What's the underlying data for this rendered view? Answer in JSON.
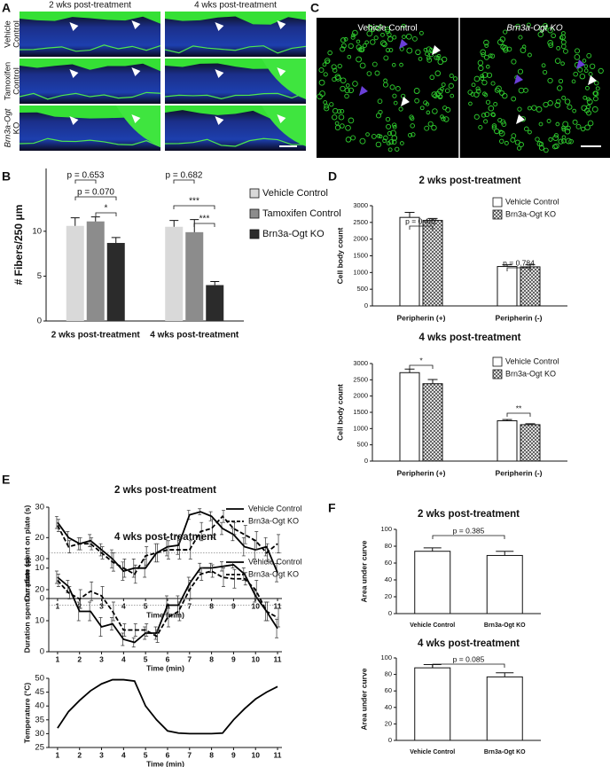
{
  "panel_letters": [
    "A",
    "B",
    "C",
    "D",
    "E",
    "F"
  ],
  "micrographs_a": {
    "columns": [
      "2 wks post-treatment",
      "4 wks post-treatment"
    ],
    "rows": [
      [
        "Vehicle",
        "Control"
      ],
      [
        "Tamoxifen",
        "Control"
      ],
      [
        "Brn3a-Ogt",
        "KO"
      ]
    ]
  },
  "micrographs_c": {
    "columns": [
      "Vehicle Control",
      "Brn3a-Ogt KO"
    ]
  },
  "chart_data": [
    {
      "type": "bar",
      "ylabel": "# Fibers/250 μm",
      "categories": [
        "2 wks post-treatment",
        "4 wks post-treatment"
      ],
      "series": [
        {
          "name": "Vehicle Control",
          "color": "#d9d9d9",
          "values": [
            10.6,
            10.5
          ],
          "errors": [
            0.9,
            0.7
          ]
        },
        {
          "name": "Tamoxifen Control",
          "color": "#8c8c8c",
          "values": [
            11.1,
            9.9
          ],
          "errors": [
            0.5,
            1.4
          ]
        },
        {
          "name": "Brn3a-Ogt KO",
          "color": "#2b2b2b",
          "values": [
            8.7,
            4.0
          ],
          "errors": [
            0.6,
            0.4
          ]
        }
      ],
      "ylim": [
        0,
        17
      ],
      "yticks": [
        0,
        5,
        10
      ],
      "legend": "right",
      "annotations": [
        "p = 0.653",
        "p = 0.070",
        "*",
        "p = 0.682",
        "***",
        "***"
      ]
    },
    {
      "type": "bar",
      "title": "2 wks post-treatment",
      "ylabel": "Cell body count",
      "categories": [
        "Peripherin (+)",
        "Peripherin (-)"
      ],
      "series": [
        {
          "name": "Vehicle Control",
          "color": "#ffffff",
          "values": [
            2650,
            1180
          ],
          "errors": [
            150,
            50
          ]
        },
        {
          "name": "Brn3a-Ogt KO",
          "color": "#444444",
          "hatch": true,
          "values": [
            2560,
            1170
          ],
          "errors": [
            60,
            60
          ]
        }
      ],
      "ylim": [
        0,
        3000
      ],
      "yticks": [
        0,
        500,
        1000,
        1500,
        2000,
        2500,
        3000
      ],
      "legend": "upper right",
      "annotations": [
        "p = 0.402",
        "p = 0.784"
      ]
    },
    {
      "type": "bar",
      "title": "4 wks post-treatment",
      "ylabel": "Cell body count",
      "categories": [
        "Peripherin (+)",
        "Peripherin (-)"
      ],
      "series": [
        {
          "name": "Vehicle Control",
          "color": "#ffffff",
          "values": [
            2720,
            1240
          ],
          "errors": [
            110,
            40
          ]
        },
        {
          "name": "Brn3a-Ogt KO",
          "color": "#444444",
          "hatch": true,
          "values": [
            2380,
            1120
          ],
          "errors": [
            130,
            30
          ]
        }
      ],
      "ylim": [
        0,
        3000
      ],
      "yticks": [
        0,
        500,
        1000,
        1500,
        2000,
        2500,
        3000
      ],
      "legend": "upper right",
      "annotations": [
        "*",
        "**"
      ]
    },
    {
      "type": "line",
      "title": "2 wks post-treatment",
      "xlabel": "Time (min)",
      "ylabel": "Duration spent on plate (s)",
      "x": [
        1,
        1.5,
        2,
        2.5,
        3,
        3.5,
        4,
        4.5,
        5,
        5.5,
        6,
        6.5,
        7,
        7.5,
        8,
        8.5,
        9,
        9.5,
        10,
        10.5,
        11
      ],
      "series": [
        {
          "name": "Vehicle Control",
          "color": "#000000",
          "values": [
            25,
            20,
            18,
            19,
            16,
            13,
            9,
            10,
            10,
            15,
            17,
            17.5,
            27.5,
            28.5,
            27,
            23,
            21,
            17,
            16,
            17,
            8.5
          ],
          "errors": [
            2,
            2,
            2,
            2,
            2,
            3,
            3,
            3,
            3,
            3,
            3,
            3,
            1.5,
            1,
            1.5,
            2,
            2,
            3,
            3,
            3,
            3
          ]
        },
        {
          "name": "Brn3a-Ogt KO",
          "color": "#000000",
          "dash": true,
          "values": [
            24,
            17,
            18,
            18,
            15,
            12,
            10,
            8,
            14,
            15,
            16,
            16,
            16,
            22,
            23,
            27,
            23,
            21,
            19,
            15,
            18
          ],
          "errors": [
            2,
            2,
            2,
            2,
            2,
            3,
            3,
            3,
            3,
            3,
            3,
            3,
            3,
            3,
            3,
            2,
            2,
            3,
            3,
            3,
            3
          ]
        }
      ],
      "xlim": [
        0.6,
        11.2
      ],
      "xticks": [
        1,
        2,
        3,
        4,
        5,
        6,
        7,
        8,
        9,
        10,
        11
      ],
      "ylim": [
        0,
        30
      ],
      "yticks": [
        0,
        10,
        20,
        30
      ],
      "reference_line": 15,
      "legend": "upper right"
    },
    {
      "type": "line",
      "title": "4 wks post-treatment",
      "xlabel": "Time (min)",
      "ylabel": "Duration spent on plate (s)",
      "x": [
        1,
        1.5,
        2,
        2.5,
        3,
        3.5,
        4,
        4.5,
        5,
        5.5,
        6,
        6.5,
        7,
        7.5,
        8,
        8.5,
        9,
        9.5,
        10,
        10.5,
        11
      ],
      "series": [
        {
          "name": "Vehicle Control",
          "color": "#000000",
          "values": [
            24,
            21,
            13,
            13,
            8,
            9,
            4,
            3,
            6,
            6,
            15,
            15,
            22,
            27,
            27,
            27.5,
            28,
            25,
            18,
            13,
            7.5
          ],
          "errors": [
            2,
            2,
            3,
            3,
            3,
            2,
            2,
            1.5,
            2,
            2,
            3,
            3,
            2,
            1.5,
            1.5,
            1.5,
            1,
            2,
            2,
            3,
            3
          ]
        },
        {
          "name": "Brn3a-Ogt KO",
          "color": "#000000",
          "dash": true,
          "values": [
            23,
            19,
            17,
            19.5,
            18,
            13,
            7,
            7,
            7,
            5,
            11,
            13,
            20,
            25,
            26,
            24,
            23.5,
            23.5,
            20,
            13,
            11
          ],
          "errors": [
            2,
            2,
            3,
            3,
            3,
            3,
            2,
            2,
            2,
            2,
            3,
            3,
            3,
            2,
            2,
            3,
            3,
            2,
            3,
            3,
            3
          ]
        }
      ],
      "xlim": [
        0.6,
        11.2
      ],
      "xticks": [
        1,
        2,
        3,
        4,
        5,
        6,
        7,
        8,
        9,
        10,
        11
      ],
      "ylim": [
        0,
        30
      ],
      "yticks": [
        0,
        10,
        20,
        30
      ],
      "reference_line": 15,
      "legend": "upper right"
    },
    {
      "type": "line",
      "xlabel": "Time (min)",
      "ylabel": "Temperature (°C)",
      "x": [
        1,
        1.5,
        2,
        2.5,
        3,
        3.5,
        4,
        4.5,
        5,
        5.5,
        6,
        6.5,
        7,
        7.5,
        8,
        8.5,
        9,
        9.5,
        10,
        10.5,
        11
      ],
      "values": [
        32,
        38,
        42,
        45.5,
        48,
        49.5,
        49.5,
        49,
        40,
        35,
        31,
        30.2,
        30,
        30,
        30,
        30.2,
        35,
        39,
        42.5,
        45,
        47
      ],
      "color": "#000000",
      "xlim": [
        0.6,
        11.2
      ],
      "xticks": [
        1,
        2,
        3,
        4,
        5,
        6,
        7,
        8,
        9,
        10,
        11
      ],
      "ylim": [
        25,
        50
      ],
      "yticks": [
        25,
        30,
        35,
        40,
        45,
        50
      ]
    },
    {
      "type": "bar",
      "title": "2 wks post-treatment",
      "ylabel": "Area under curve",
      "categories": [
        "Vehicle Control",
        "Brn3a-Ogt KO"
      ],
      "values": [
        74,
        69
      ],
      "errors": [
        4,
        5
      ],
      "color": "#ffffff",
      "ylim": [
        0,
        100
      ],
      "yticks": [
        0,
        20,
        40,
        60,
        80,
        100
      ],
      "annotations": [
        "p = 0.385"
      ]
    },
    {
      "type": "bar",
      "title": "4 wks post-treatment",
      "ylabel": "Area under curve",
      "categories": [
        "Vehicle Control",
        "Brn3a-Ogt KO"
      ],
      "values": [
        88,
        77
      ],
      "errors": [
        4,
        5
      ],
      "color": "#ffffff",
      "ylim": [
        0,
        100
      ],
      "yticks": [
        0,
        20,
        40,
        60,
        80,
        100
      ],
      "annotations": [
        "p = 0.085"
      ]
    }
  ]
}
